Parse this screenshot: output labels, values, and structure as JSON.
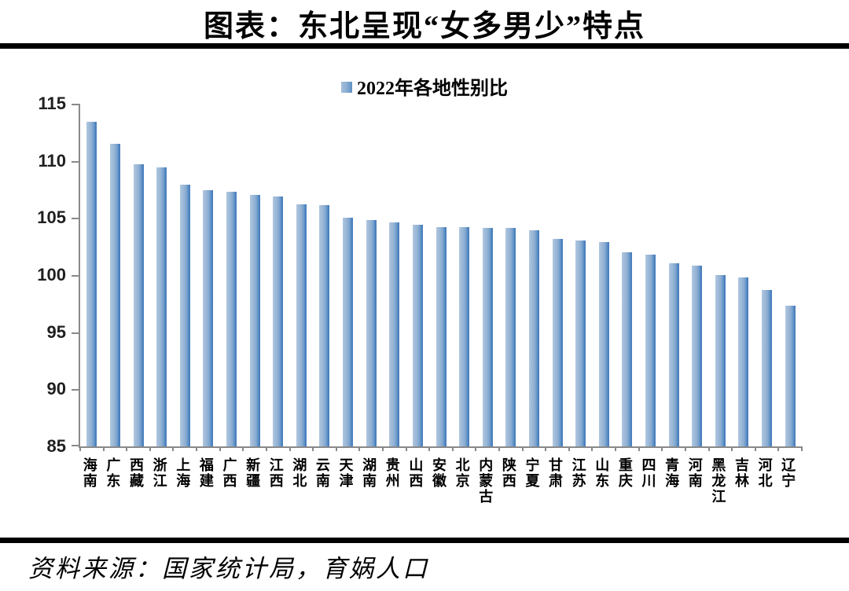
{
  "title": "图表：东北呈现“女多男少”特点",
  "legend": {
    "swatch_color": "#6f9ac9",
    "label": "2022年各地性别比"
  },
  "source": "资料来源：国家统计局，育娲人口",
  "colors": {
    "bar_light": "#a5bedb",
    "bar_dark": "#3a74b8",
    "axis": "#898989",
    "rule": "#000000"
  },
  "chart_data": {
    "type": "bar",
    "title": "2022年各地性别比",
    "xlabel": "",
    "ylabel": "",
    "ylim": [
      85,
      115
    ],
    "y_ticks": [
      115,
      110,
      105,
      100,
      95,
      90,
      85
    ],
    "grid": false,
    "legend_position": "top-center",
    "categories": [
      "海南",
      "广东",
      "西藏",
      "浙江",
      "上海",
      "福建",
      "广西",
      "新疆",
      "江西",
      "湖北",
      "云南",
      "天津",
      "湖南",
      "贵州",
      "山西",
      "安徽",
      "北京",
      "内蒙古",
      "陕西",
      "宁夏",
      "甘肃",
      "江苏",
      "山东",
      "重庆",
      "四川",
      "青海",
      "河南",
      "黑龙江",
      "吉林",
      "河北",
      "辽宁"
    ],
    "values": [
      113.4,
      111.5,
      109.7,
      109.4,
      107.9,
      107.4,
      107.3,
      107.0,
      106.9,
      106.2,
      106.1,
      105.0,
      104.8,
      104.6,
      104.4,
      104.2,
      104.2,
      104.1,
      104.1,
      103.9,
      103.2,
      103.0,
      102.9,
      102.0,
      101.8,
      101.0,
      100.8,
      100.0,
      99.8,
      98.7,
      97.3
    ]
  }
}
